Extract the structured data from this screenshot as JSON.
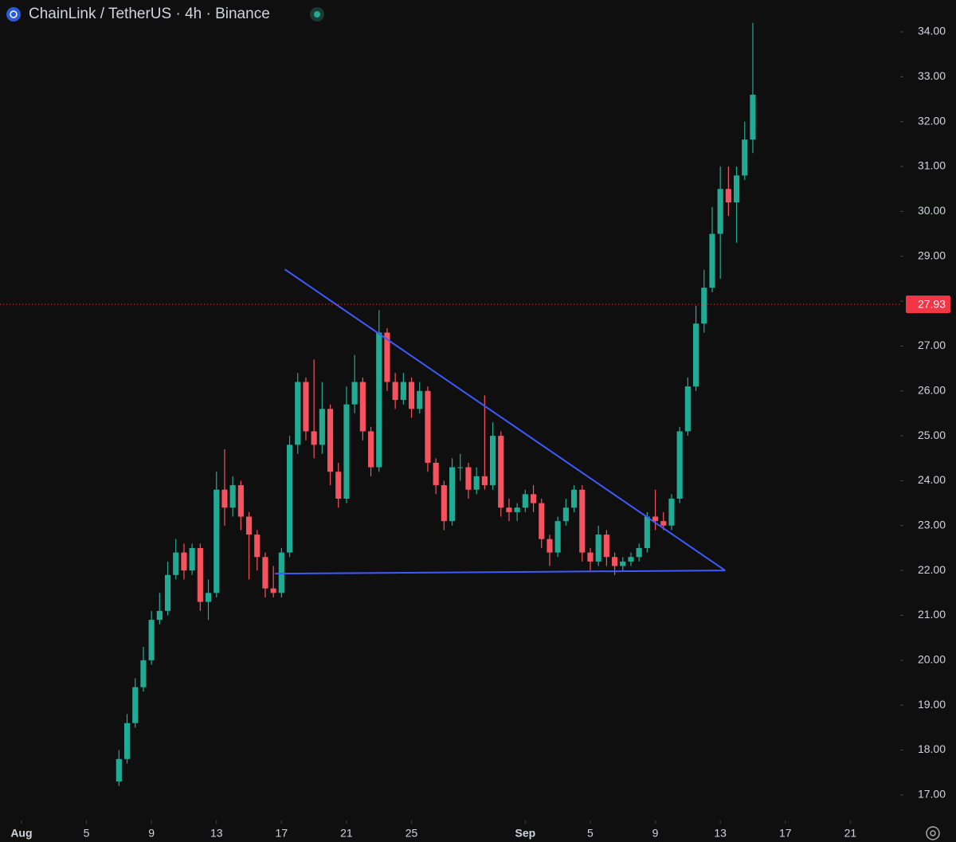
{
  "chart_data": {
    "type": "candlestick",
    "title": "ChainLink / TetherUS · 4h · Binance",
    "up_color": "#22ab94",
    "down_color": "#f7525f",
    "line_color": "#3d5afe",
    "xlim": [
      -0.32,
      55.07
    ],
    "ylim": [
      16.43,
      34.71
    ],
    "xticks": [
      {
        "value": 1,
        "label": "Aug"
      },
      5,
      9,
      13,
      17,
      21,
      25,
      {
        "value": 32,
        "label": "Sep"
      },
      {
        "value": 36,
        "label": "5"
      },
      {
        "value": 40,
        "label": "9"
      },
      {
        "value": 44,
        "label": "13"
      },
      {
        "value": 48,
        "label": "17"
      },
      {
        "value": 52,
        "label": "21"
      }
    ],
    "yticks": [
      {
        "value": 17,
        "label": "17.00"
      },
      {
        "value": 18,
        "label": "18.00"
      },
      {
        "value": 19,
        "label": "19.00"
      },
      {
        "value": 20,
        "label": "20.00"
      },
      {
        "value": 21,
        "label": "21.00"
      },
      {
        "value": 22,
        "label": "22.00"
      },
      {
        "value": 23,
        "label": "23.00"
      },
      {
        "value": 24,
        "label": "24.00"
      },
      {
        "value": 25,
        "label": "25.00"
      },
      {
        "value": 26,
        "label": "26.00"
      },
      {
        "value": 27,
        "label": "27.00"
      },
      {
        "value": 28,
        "label": "28.00"
      },
      {
        "value": 29,
        "label": "29.00"
      },
      {
        "value": 30,
        "label": "30.00"
      },
      {
        "value": 31,
        "label": "31.00"
      },
      {
        "value": 32,
        "label": "32.00"
      },
      {
        "value": 33,
        "label": "33.00"
      },
      {
        "value": 34,
        "label": "34.00"
      }
    ],
    "price_line": {
      "value": 27.93,
      "color": "#f23645"
    },
    "trendlines": [
      {
        "x": [
          17.2,
          44.3
        ],
        "y": [
          28.71,
          22.0
        ]
      },
      {
        "x": [
          16.6,
          44.3
        ],
        "y": [
          21.93,
          22.0
        ]
      }
    ],
    "x": [
      7,
      7.5,
      8,
      8.5,
      9,
      9.5,
      10,
      10.5,
      11,
      11.5,
      12,
      12.5,
      13,
      13.5,
      14,
      14.5,
      15,
      15.5,
      16,
      16.5,
      17,
      17.5,
      18,
      18.5,
      19,
      19.5,
      20,
      20.5,
      21,
      21.5,
      22,
      22.5,
      23,
      23.5,
      24,
      24.5,
      25,
      25.5,
      26,
      26.5,
      27,
      27.5,
      28,
      28.5,
      29,
      29.5,
      30,
      30.5,
      31,
      31.5,
      32,
      32.5,
      33,
      33.5,
      34,
      34.5,
      35,
      35.5,
      36,
      36.5,
      37,
      37.5,
      38,
      38.5,
      39,
      39.5,
      40,
      40.5,
      41,
      41.5,
      42,
      42.5,
      43,
      43.5,
      44,
      44.5,
      45,
      45.5,
      46
    ],
    "open": [
      17.3,
      17.8,
      18.6,
      19.4,
      20.0,
      20.9,
      21.1,
      21.9,
      22.4,
      22.0,
      22.5,
      21.3,
      21.5,
      23.8,
      23.4,
      23.9,
      23.2,
      22.8,
      22.3,
      21.6,
      21.5,
      22.4,
      24.8,
      26.2,
      25.1,
      24.8,
      25.6,
      24.2,
      23.6,
      25.7,
      26.2,
      25.1,
      24.3,
      27.3,
      26.2,
      25.8,
      26.2,
      25.6,
      26.0,
      24.4,
      23.9,
      23.1,
      24.3,
      24.3,
      23.8,
      24.1,
      23.9,
      25.0,
      23.4,
      23.3,
      23.4,
      23.7,
      23.5,
      22.7,
      22.4,
      23.1,
      23.4,
      23.8,
      22.4,
      22.2,
      22.8,
      22.3,
      22.1,
      22.2,
      22.3,
      22.5,
      23.2,
      23.1,
      23.0,
      23.6,
      25.1,
      26.1,
      27.5,
      28.3,
      29.5,
      30.5,
      30.2,
      30.8,
      31.6
    ],
    "high": [
      18.0,
      18.8,
      19.6,
      20.3,
      21.1,
      21.5,
      22.2,
      22.7,
      22.6,
      22.6,
      22.6,
      21.8,
      24.2,
      24.7,
      24.1,
      24.0,
      23.3,
      22.9,
      22.4,
      22.1,
      22.5,
      25.0,
      26.4,
      26.3,
      26.7,
      26.2,
      25.7,
      24.4,
      26.1,
      26.8,
      26.3,
      25.2,
      27.8,
      27.4,
      26.4,
      26.4,
      26.3,
      26.2,
      26.1,
      24.5,
      24.0,
      24.5,
      24.6,
      24.4,
      24.3,
      25.9,
      25.3,
      25.1,
      23.6,
      23.5,
      23.8,
      23.9,
      23.6,
      22.8,
      23.2,
      23.6,
      23.9,
      23.9,
      22.5,
      23.0,
      22.9,
      22.4,
      22.3,
      22.4,
      22.6,
      23.3,
      23.8,
      23.3,
      23.7,
      25.2,
      26.3,
      27.9,
      28.7,
      30.1,
      31.0,
      31.0,
      31.0,
      32.0,
      34.2
    ],
    "low": [
      17.2,
      17.7,
      18.5,
      19.3,
      19.9,
      20.8,
      21.0,
      21.8,
      21.8,
      21.9,
      21.1,
      20.9,
      21.4,
      23.0,
      23.2,
      22.9,
      21.8,
      22.0,
      21.4,
      21.4,
      21.4,
      22.3,
      24.6,
      24.9,
      24.5,
      24.6,
      23.9,
      23.4,
      23.5,
      25.5,
      24.9,
      24.1,
      24.2,
      26.0,
      25.6,
      25.7,
      25.4,
      25.5,
      24.2,
      23.7,
      22.9,
      23.0,
      24.0,
      23.6,
      23.7,
      23.8,
      23.8,
      23.2,
      23.1,
      23.1,
      23.3,
      23.3,
      22.5,
      22.1,
      22.3,
      23.0,
      23.3,
      22.2,
      22.0,
      22.1,
      22.1,
      21.9,
      22.0,
      22.1,
      22.2,
      22.4,
      22.9,
      22.9,
      22.9,
      23.5,
      25.0,
      26.0,
      27.3,
      28.2,
      28.5,
      29.9,
      29.3,
      30.7,
      31.3
    ],
    "close": [
      17.8,
      18.6,
      19.4,
      20.0,
      20.9,
      21.1,
      21.9,
      22.4,
      22.0,
      22.5,
      21.3,
      21.5,
      23.8,
      23.4,
      23.9,
      23.2,
      22.8,
      22.3,
      21.6,
      21.5,
      22.4,
      24.8,
      26.2,
      25.1,
      24.8,
      25.6,
      24.2,
      23.6,
      25.7,
      26.2,
      25.1,
      24.3,
      27.3,
      26.2,
      25.8,
      26.2,
      25.6,
      26.0,
      24.4,
      23.9,
      23.1,
      24.3,
      24.3,
      23.8,
      24.1,
      23.9,
      25.0,
      23.4,
      23.3,
      23.4,
      23.7,
      23.5,
      22.7,
      22.4,
      23.1,
      23.4,
      23.8,
      22.4,
      22.2,
      22.8,
      22.3,
      22.1,
      22.2,
      22.3,
      22.5,
      23.2,
      23.1,
      23.0,
      23.6,
      25.1,
      26.1,
      27.5,
      28.3,
      29.5,
      30.5,
      30.2,
      30.8,
      31.6,
      32.6
    ]
  }
}
